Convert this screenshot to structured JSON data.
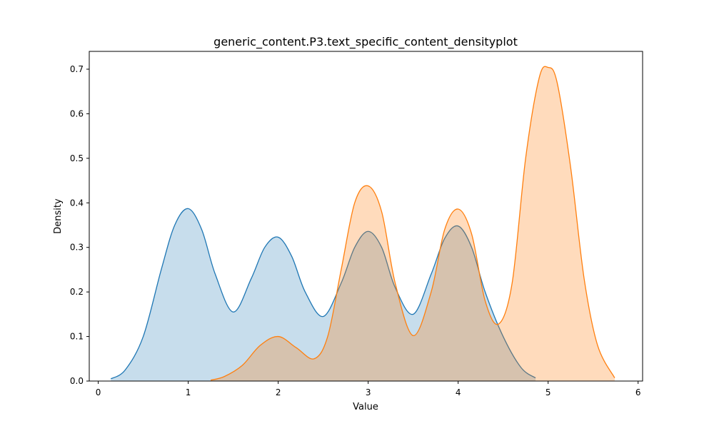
{
  "chart_data": {
    "type": "area",
    "title": "generic_content.P3.text_specific_content_densityplot",
    "xlabel": "Value",
    "ylabel": "Density",
    "xlim": [
      -0.1,
      6.05
    ],
    "ylim": [
      0,
      0.74
    ],
    "xticks": [
      0,
      1,
      2,
      3,
      4,
      5,
      6
    ],
    "yticks": [
      0.0,
      0.1,
      0.2,
      0.3,
      0.4,
      0.5,
      0.6,
      0.7
    ],
    "xtick_labels": [
      "0",
      "1",
      "2",
      "3",
      "4",
      "5",
      "6"
    ],
    "ytick_labels": [
      "0.0",
      "0.1",
      "0.2",
      "0.3",
      "0.4",
      "0.5",
      "0.6",
      "0.7"
    ],
    "grid": false,
    "legend": false,
    "series": [
      {
        "color": "#1f77b4",
        "x": [
          0.14,
          0.3,
          0.5,
          0.7,
          0.85,
          1.0,
          1.15,
          1.3,
          1.5,
          1.7,
          1.85,
          2.0,
          2.15,
          2.3,
          2.5,
          2.7,
          2.85,
          3.0,
          3.15,
          3.3,
          3.5,
          3.7,
          3.85,
          4.0,
          4.15,
          4.3,
          4.5,
          4.7,
          4.86
        ],
        "values": [
          0.005,
          0.025,
          0.1,
          0.25,
          0.35,
          0.387,
          0.34,
          0.24,
          0.155,
          0.23,
          0.3,
          0.323,
          0.28,
          0.2,
          0.145,
          0.22,
          0.3,
          0.336,
          0.3,
          0.21,
          0.15,
          0.24,
          0.32,
          0.348,
          0.3,
          0.2,
          0.1,
          0.03,
          0.007
        ]
      },
      {
        "color": "#ff7f0e",
        "x": [
          1.25,
          1.4,
          1.6,
          1.8,
          2.0,
          2.2,
          2.4,
          2.55,
          2.7,
          2.85,
          3.0,
          3.15,
          3.3,
          3.5,
          3.7,
          3.85,
          4.0,
          4.15,
          4.3,
          4.45,
          4.6,
          4.75,
          4.9,
          5.0,
          5.1,
          5.25,
          5.4,
          5.55,
          5.74
        ],
        "values": [
          0.002,
          0.01,
          0.035,
          0.08,
          0.1,
          0.075,
          0.05,
          0.1,
          0.25,
          0.4,
          0.438,
          0.38,
          0.22,
          0.102,
          0.2,
          0.34,
          0.386,
          0.33,
          0.18,
          0.128,
          0.22,
          0.5,
          0.68,
          0.704,
          0.67,
          0.48,
          0.23,
          0.08,
          0.007
        ]
      }
    ]
  }
}
